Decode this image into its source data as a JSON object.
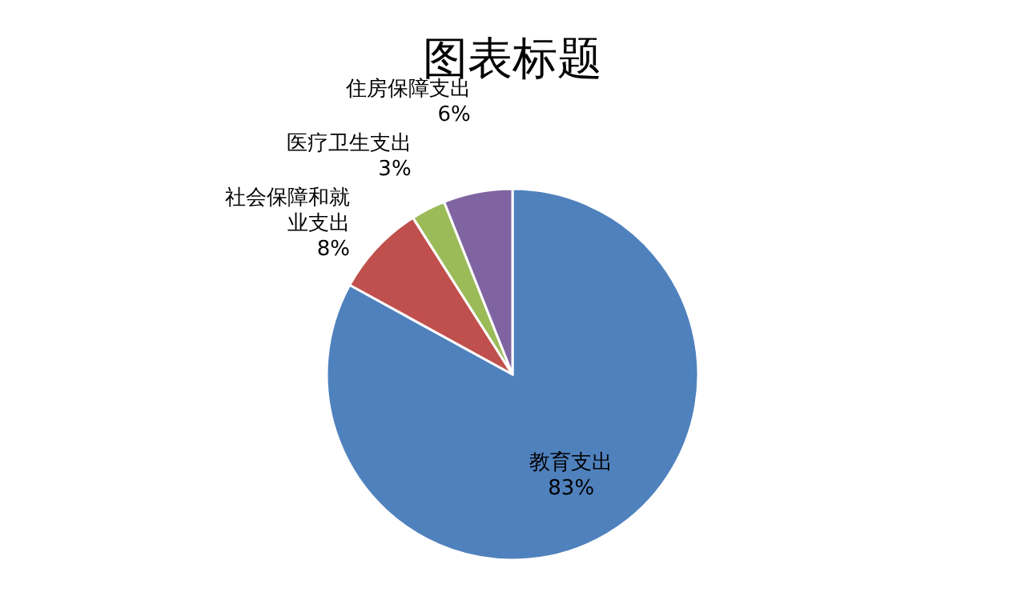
{
  "chart_data": {
    "type": "pie",
    "title": "图表标题",
    "categories": [
      "教育支出",
      "社会保障和就业支出",
      "医疗卫生支出",
      "住房保障支出"
    ],
    "values": [
      83,
      8,
      3,
      6
    ],
    "colors": [
      "#4f81bd",
      "#c0504d",
      "#9bbb59",
      "#8064a2"
    ],
    "value_labels": [
      "83%",
      "8%",
      "3%",
      "6%"
    ]
  }
}
